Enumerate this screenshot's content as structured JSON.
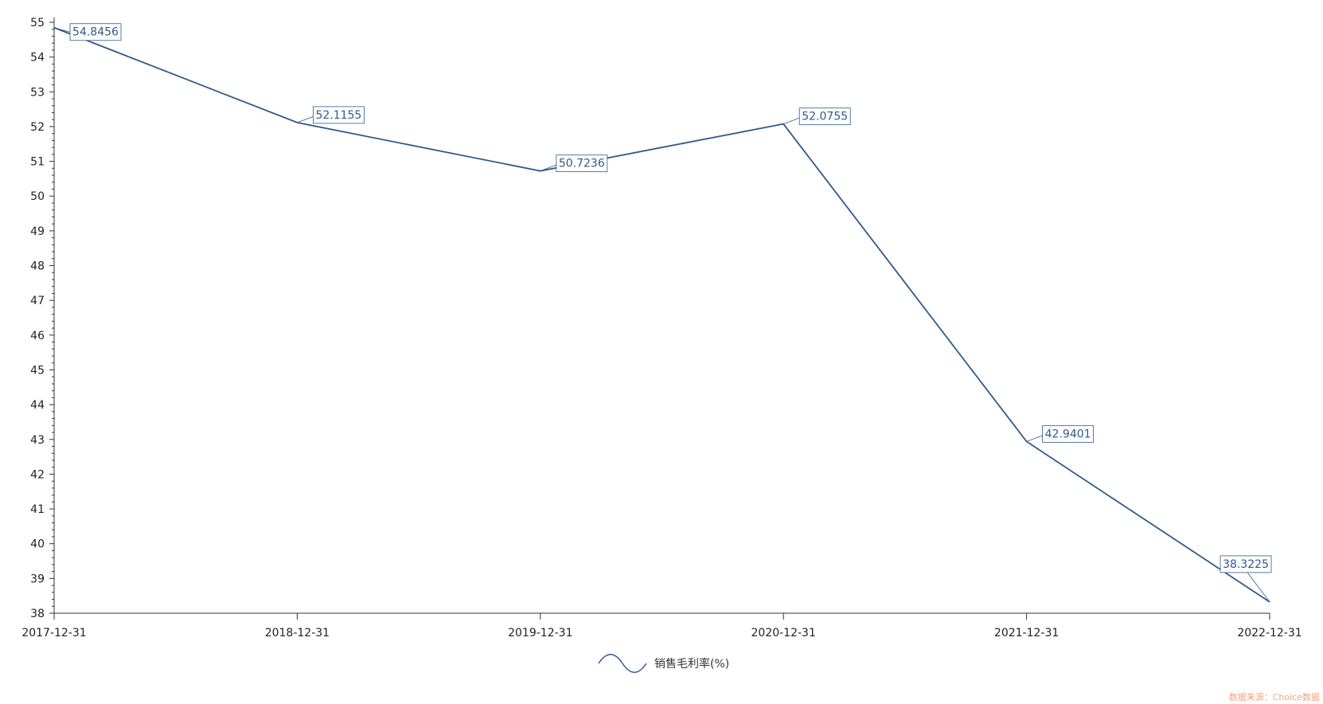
{
  "chart_data": {
    "type": "line",
    "categories": [
      "2017-12-31",
      "2018-12-31",
      "2019-12-31",
      "2020-12-31",
      "2021-12-31",
      "2022-12-31"
    ],
    "series": [
      {
        "name": "销售毛利率(%)",
        "values": [
          54.8456,
          52.1155,
          50.7236,
          52.0755,
          42.9401,
          38.3225
        ]
      }
    ],
    "data_labels": [
      "54.8456",
      "52.1155",
      "50.7236",
      "52.0755",
      "42.9401",
      "38.3225"
    ],
    "ylim": [
      38,
      55
    ],
    "y_ticks": [
      "38",
      "39",
      "40",
      "41",
      "42",
      "43",
      "44",
      "45",
      "46",
      "47",
      "48",
      "49",
      "50",
      "51",
      "52",
      "53",
      "54",
      "55"
    ],
    "legend_position": "bottom-center",
    "line_color": "#2f5a8c",
    "grid": false
  },
  "source_note": "数据来源：Choice数据"
}
